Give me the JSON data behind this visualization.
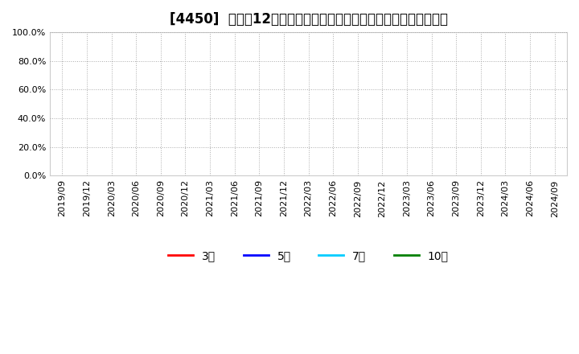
{
  "title": "[4450]  売上高12か月移動合計の対前年同期増減率の平均値の推移",
  "background_color": "#ffffff",
  "plot_bg_color": "#ffffff",
  "ylim": [
    0.0,
    1.0
  ],
  "yticks": [
    0.0,
    0.2,
    0.4,
    0.6,
    0.8,
    1.0
  ],
  "ytick_labels": [
    "0.0%",
    "20.0%",
    "40.0%",
    "60.0%",
    "80.0%",
    "100.0%"
  ],
  "xtick_labels": [
    "2019/09",
    "2019/12",
    "2020/03",
    "2020/06",
    "2020/09",
    "2020/12",
    "2021/03",
    "2021/06",
    "2021/09",
    "2021/12",
    "2022/03",
    "2022/06",
    "2022/09",
    "2022/12",
    "2023/03",
    "2023/06",
    "2023/09",
    "2023/12",
    "2024/03",
    "2024/06",
    "2024/09"
  ],
  "legend": [
    {
      "label": "3年",
      "color": "#ff0000",
      "linewidth": 2.0
    },
    {
      "label": "5年",
      "color": "#0000ff",
      "linewidth": 2.0
    },
    {
      "label": "7年",
      "color": "#00ccff",
      "linewidth": 2.0
    },
    {
      "label": "10年",
      "color": "#008000",
      "linewidth": 2.0
    }
  ],
  "grid_color": "#aaaaaa",
  "grid_linestyle": ":",
  "title_fontsize": 12,
  "tick_fontsize": 8,
  "legend_fontsize": 10
}
